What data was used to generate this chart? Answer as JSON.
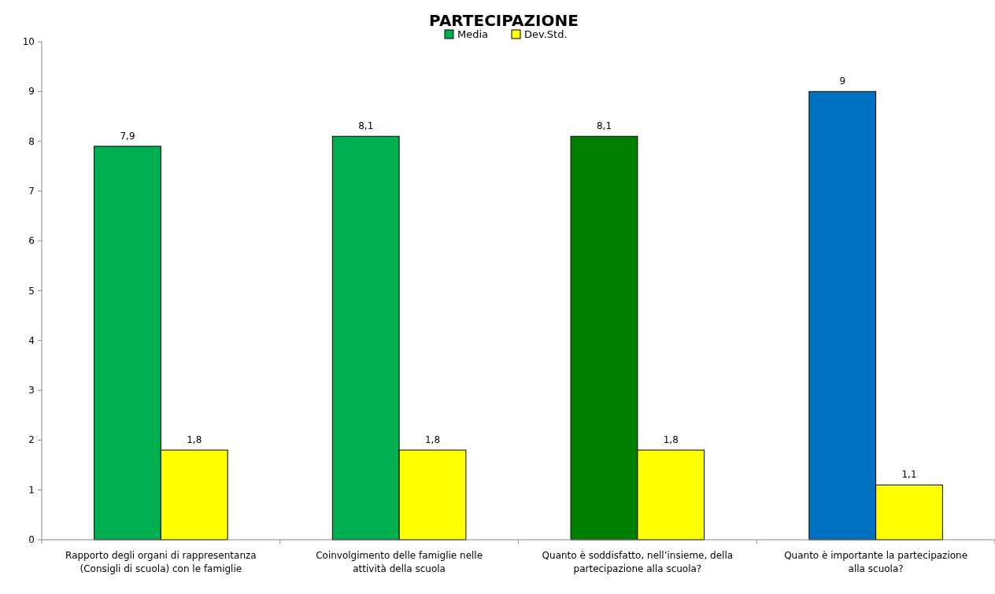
{
  "chart_data": {
    "type": "bar",
    "title": "PARTECIPAZIONE",
    "categories": [
      "Rapporto degli organi di rappresentanza (Consigli di scuola) con le famiglie",
      "Coinvolgimento delle famiglie nelle attività della scuola",
      "Quanto è soddisfatto, nell’insieme, della partecipazione alla scuola?",
      "Quanto è importante la partecipazione alla scuola?"
    ],
    "series": [
      {
        "name": "Media",
        "color": "#00b050",
        "colors": [
          "#00b050",
          "#00b050",
          "#008000",
          "#0070c0"
        ],
        "values": [
          7.9,
          8.1,
          8.1,
          9
        ],
        "value_labels": [
          "7,9",
          "8,1",
          "8,1",
          "9"
        ]
      },
      {
        "name": "Dev.Std.",
        "color": "#ffff00",
        "values": [
          1.8,
          1.8,
          1.8,
          1.1
        ],
        "value_labels": [
          "1,8",
          "1,8",
          "1,8",
          "1,1"
        ]
      }
    ],
    "ylim": [
      0,
      10
    ],
    "yticks": [
      0,
      1,
      2,
      3,
      4,
      5,
      6,
      7,
      8,
      9,
      10
    ],
    "legend": "top"
  }
}
